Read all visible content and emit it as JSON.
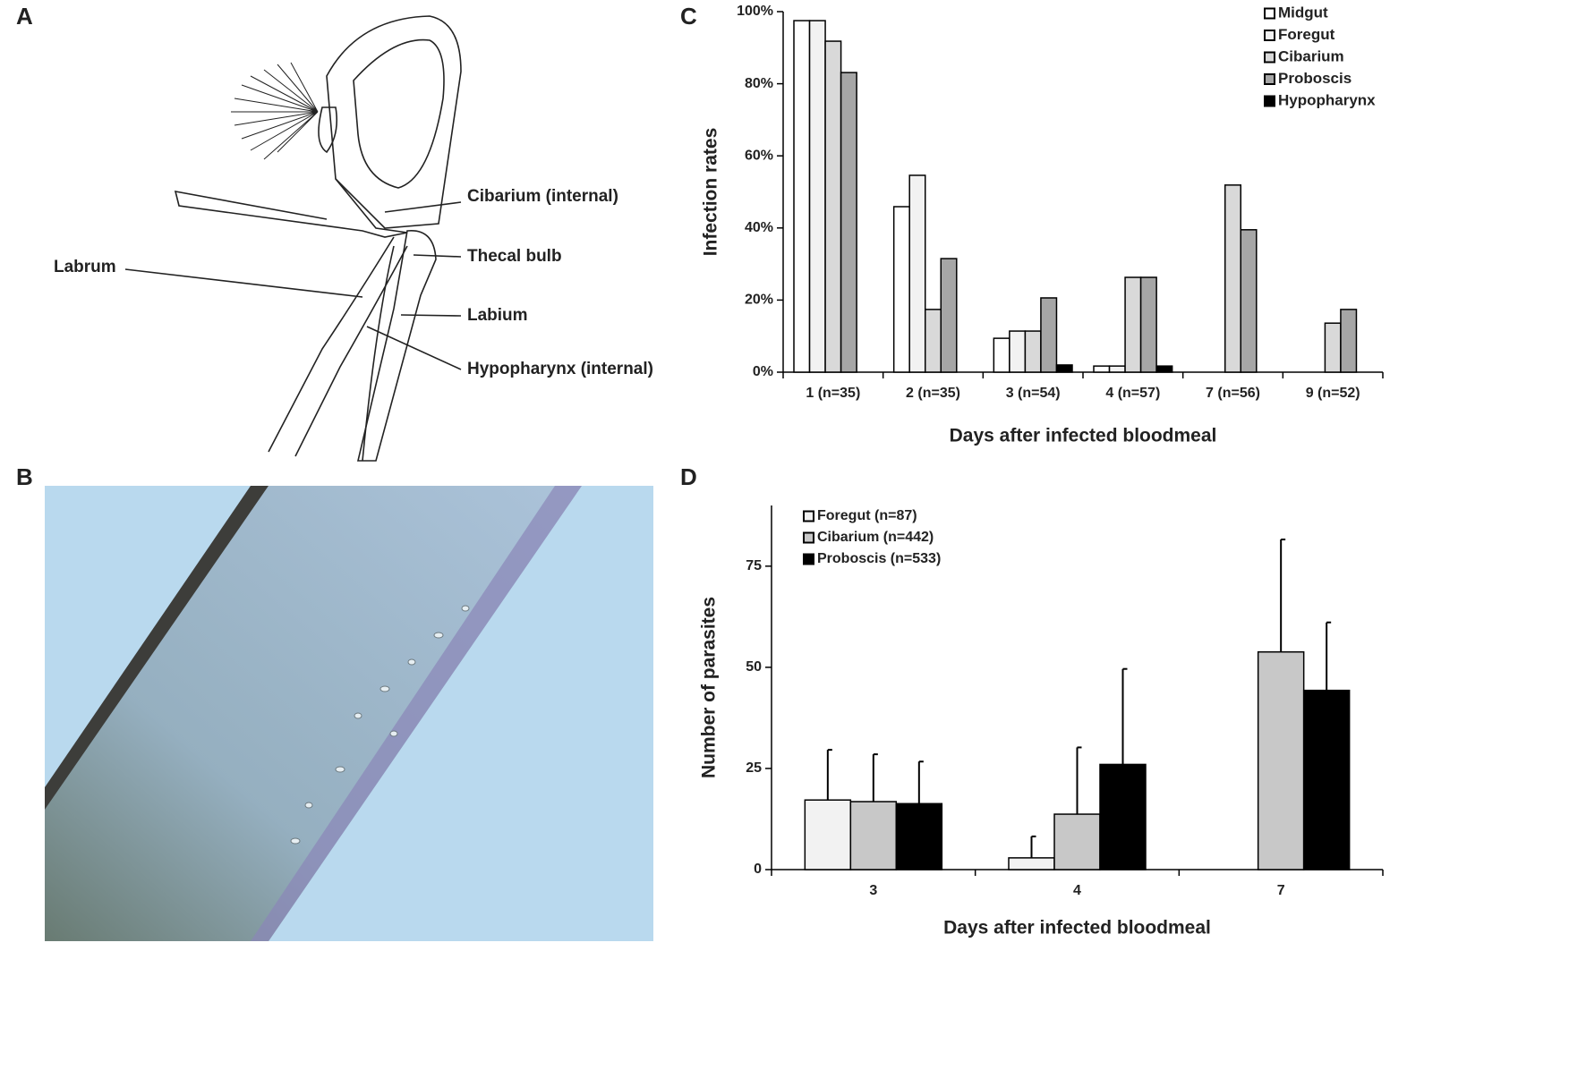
{
  "panels": {
    "A": {
      "label": "A",
      "annotations": [
        "Cibarium (internal)",
        "Thecal bulb",
        "Labrum",
        "Labium",
        "Hypopharynx (internal)"
      ]
    },
    "B": {
      "label": "B"
    }
  },
  "chart_data": [
    {
      "type": "bar",
      "label": "C",
      "x_label": "Days after infected bloodmeal",
      "y_label": "Infection rates",
      "categories": [
        "1 (n=35)",
        "2 (n=35)",
        "3 (n=54)",
        "4 (n=57)",
        "7 (n=56)",
        "9 (n=52)"
      ],
      "series": [
        {
          "name": "Midgut",
          "color": "#ffffff",
          "values": [
            97.5,
            45.9,
            9.4,
            1.7,
            0,
            0
          ]
        },
        {
          "name": "Foregut",
          "color": "#f2f2f2",
          "values": [
            97.5,
            54.6,
            11.4,
            1.7,
            0,
            0
          ]
        },
        {
          "name": "Cibarium",
          "color": "#d9d9d9",
          "values": [
            91.8,
            17.4,
            11.4,
            26.3,
            51.9,
            13.6
          ]
        },
        {
          "name": "Proboscis",
          "color": "#a6a6a6",
          "values": [
            83.1,
            31.5,
            20.6,
            26.3,
            39.5,
            17.4
          ]
        },
        {
          "name": "Hypopharynx",
          "color": "#000000",
          "values": [
            0,
            0,
            2,
            1.7,
            0,
            0
          ]
        }
      ],
      "ylim": [
        0,
        100
      ],
      "yticks": [
        {
          "value": 0,
          "label": "0%"
        },
        {
          "value": 20,
          "label": "20%"
        },
        {
          "value": 40,
          "label": "40%"
        },
        {
          "value": 60,
          "label": "60%"
        },
        {
          "value": 80,
          "label": "80%"
        },
        {
          "value": 100,
          "label": "100%"
        }
      ],
      "legend": "upper right"
    },
    {
      "type": "bar",
      "label": "D",
      "x_label": "Days after infected bloodmeal",
      "y_label": "Number of parasites",
      "categories": [
        "3",
        "4",
        "7"
      ],
      "series": [
        {
          "name": "Foregut (n=87)",
          "color": "#f2f2f2",
          "values": [
            17.2,
            2.9,
            null
          ],
          "errors": [
            12.4,
            5.3,
            null
          ]
        },
        {
          "name": "Cibarium (n=442)",
          "color": "#c8c8c8",
          "values": [
            16.8,
            13.7,
            53.8
          ],
          "errors": [
            11.7,
            16.5,
            27.8
          ]
        },
        {
          "name": "Proboscis (n=533)",
          "color": "#000000",
          "values": [
            16.3,
            26.0,
            44.3
          ],
          "errors": [
            10.4,
            23.6,
            16.8
          ]
        }
      ],
      "ylim": [
        0,
        90
      ],
      "yticks": [
        0,
        25,
        50,
        75
      ],
      "legend": "upper left"
    }
  ]
}
